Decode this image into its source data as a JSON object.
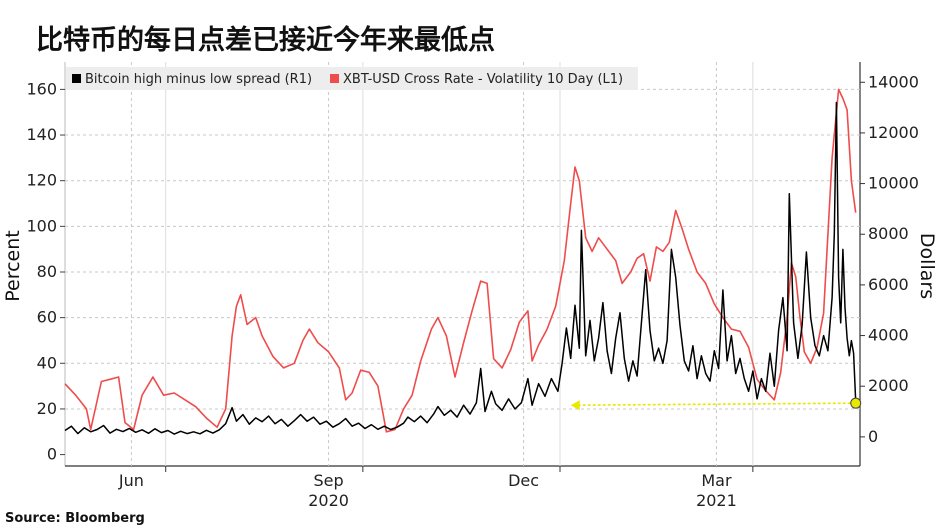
{
  "title": "比特币的每日点差已接近今年来最低点",
  "source": "Source: Bloomberg",
  "chart_data": {
    "type": "line",
    "left_axis_label": "Percent",
    "right_axis_label": "Dollars",
    "left_ticks": [
      "0",
      "20",
      "40",
      "60",
      "80",
      "100",
      "120",
      "140",
      "160"
    ],
    "right_ticks": [
      "0",
      "2000",
      "4000",
      "6000",
      "8000",
      "10000",
      "12000",
      "14000"
    ],
    "left_ylim": [
      -5,
      172
    ],
    "right_ylim": [
      -1150,
      14800
    ],
    "x_ticks": [
      {
        "date": "2020-06-15",
        "label": "Jun",
        "year": ""
      },
      {
        "date": "2020-09-15",
        "label": "Sep",
        "year": "2020"
      },
      {
        "date": "2020-12-15",
        "label": "Dec",
        "year": ""
      },
      {
        "date": "2021-03-15",
        "label": "Mar",
        "year": "2021"
      }
    ],
    "x_separators": [
      "2020-07-01",
      "2020-10-01",
      "2021-01-01",
      "2021-04-01"
    ],
    "xlim": [
      "2020-05-15",
      "2021-05-21"
    ],
    "legend": [
      {
        "label": "Bitcoin high minus low spread (R1)",
        "color": "#000000"
      },
      {
        "label": "XBT-USD Cross Rate - Volatility 10 Day (L1)",
        "color": "#ef4c4c"
      }
    ],
    "annotation": {
      "type": "arrow",
      "color": "#e8e800",
      "from": [
        "2021-05-19",
        1330
      ],
      "to": [
        "2021-01-06",
        1250
      ]
    },
    "series": [
      {
        "name": "XBT-USD Cross Rate - Volatility 10 Day (L1)",
        "axis": "left",
        "color": "#ef4c4c",
        "points": [
          [
            "2020-05-15",
            31
          ],
          [
            "2020-05-20",
            26
          ],
          [
            "2020-05-25",
            20
          ],
          [
            "2020-05-27",
            11
          ],
          [
            "2020-06-01",
            32
          ],
          [
            "2020-06-05",
            33
          ],
          [
            "2020-06-09",
            34
          ],
          [
            "2020-06-12",
            14
          ],
          [
            "2020-06-16",
            11
          ],
          [
            "2020-06-20",
            26
          ],
          [
            "2020-06-25",
            34
          ],
          [
            "2020-06-30",
            26
          ],
          [
            "2020-07-05",
            27
          ],
          [
            "2020-07-10",
            24
          ],
          [
            "2020-07-15",
            21
          ],
          [
            "2020-07-20",
            16
          ],
          [
            "2020-07-25",
            12
          ],
          [
            "2020-07-29",
            20
          ],
          [
            "2020-08-01",
            52
          ],
          [
            "2020-08-03",
            65
          ],
          [
            "2020-08-05",
            70
          ],
          [
            "2020-08-08",
            57
          ],
          [
            "2020-08-12",
            60
          ],
          [
            "2020-08-15",
            52
          ],
          [
            "2020-08-20",
            43
          ],
          [
            "2020-08-25",
            38
          ],
          [
            "2020-08-30",
            40
          ],
          [
            "2020-09-03",
            50
          ],
          [
            "2020-09-06",
            55
          ],
          [
            "2020-09-10",
            49
          ],
          [
            "2020-09-15",
            45
          ],
          [
            "2020-09-20",
            38
          ],
          [
            "2020-09-23",
            24
          ],
          [
            "2020-09-26",
            27
          ],
          [
            "2020-09-30",
            37
          ],
          [
            "2020-10-04",
            36
          ],
          [
            "2020-10-08",
            30
          ],
          [
            "2020-10-12",
            10
          ],
          [
            "2020-10-16",
            11
          ],
          [
            "2020-10-20",
            20
          ],
          [
            "2020-10-24",
            26
          ],
          [
            "2020-10-28",
            41
          ],
          [
            "2020-11-02",
            55
          ],
          [
            "2020-11-05",
            60
          ],
          [
            "2020-11-09",
            52
          ],
          [
            "2020-11-13",
            34
          ],
          [
            "2020-11-17",
            49
          ],
          [
            "2020-11-21",
            63
          ],
          [
            "2020-11-25",
            76
          ],
          [
            "2020-11-28",
            75
          ],
          [
            "2020-12-01",
            42
          ],
          [
            "2020-12-05",
            38
          ],
          [
            "2020-12-09",
            46
          ],
          [
            "2020-12-13",
            58
          ],
          [
            "2020-12-17",
            63
          ],
          [
            "2020-12-19",
            41
          ],
          [
            "2020-12-22",
            48
          ],
          [
            "2020-12-26",
            55
          ],
          [
            "2020-12-30",
            65
          ],
          [
            "2021-01-03",
            85
          ],
          [
            "2021-01-06",
            110
          ],
          [
            "2021-01-08",
            126
          ],
          [
            "2021-01-10",
            120
          ],
          [
            "2021-01-13",
            95
          ],
          [
            "2021-01-16",
            89
          ],
          [
            "2021-01-19",
            95
          ],
          [
            "2021-01-23",
            90
          ],
          [
            "2021-01-27",
            85
          ],
          [
            "2021-01-30",
            75
          ],
          [
            "2021-02-03",
            80
          ],
          [
            "2021-02-06",
            86
          ],
          [
            "2021-02-09",
            88
          ],
          [
            "2021-02-12",
            76
          ],
          [
            "2021-02-15",
            91
          ],
          [
            "2021-02-18",
            89
          ],
          [
            "2021-02-21",
            93
          ],
          [
            "2021-02-24",
            107
          ],
          [
            "2021-02-27",
            99
          ],
          [
            "2021-03-02",
            90
          ],
          [
            "2021-03-06",
            80
          ],
          [
            "2021-03-10",
            75
          ],
          [
            "2021-03-14",
            66
          ],
          [
            "2021-03-18",
            60
          ],
          [
            "2021-03-22",
            55
          ],
          [
            "2021-03-26",
            54
          ],
          [
            "2021-03-30",
            47
          ],
          [
            "2021-04-03",
            33
          ],
          [
            "2021-04-07",
            28
          ],
          [
            "2021-04-11",
            24
          ],
          [
            "2021-04-14",
            36
          ],
          [
            "2021-04-17",
            60
          ],
          [
            "2021-04-19",
            84
          ],
          [
            "2021-04-21",
            78
          ],
          [
            "2021-04-23",
            60
          ],
          [
            "2021-04-25",
            45
          ],
          [
            "2021-04-28",
            40
          ],
          [
            "2021-05-01",
            47
          ],
          [
            "2021-05-04",
            62
          ],
          [
            "2021-05-08",
            130
          ],
          [
            "2021-05-11",
            160
          ],
          [
            "2021-05-13",
            156
          ],
          [
            "2021-05-15",
            151
          ],
          [
            "2021-05-17",
            120
          ],
          [
            "2021-05-19",
            106
          ]
        ]
      },
      {
        "name": "Bitcoin high minus low spread (R1)",
        "axis": "right",
        "color": "#000000",
        "points": [
          [
            "2020-05-15",
            250
          ],
          [
            "2020-05-18",
            420
          ],
          [
            "2020-05-21",
            130
          ],
          [
            "2020-05-24",
            360
          ],
          [
            "2020-05-27",
            200
          ],
          [
            "2020-05-30",
            290
          ],
          [
            "2020-06-02",
            450
          ],
          [
            "2020-06-05",
            150
          ],
          [
            "2020-06-08",
            300
          ],
          [
            "2020-06-11",
            210
          ],
          [
            "2020-06-14",
            330
          ],
          [
            "2020-06-17",
            180
          ],
          [
            "2020-06-20",
            280
          ],
          [
            "2020-06-23",
            140
          ],
          [
            "2020-06-26",
            320
          ],
          [
            "2020-06-29",
            170
          ],
          [
            "2020-07-02",
            250
          ],
          [
            "2020-07-05",
            110
          ],
          [
            "2020-07-08",
            220
          ],
          [
            "2020-07-11",
            130
          ],
          [
            "2020-07-14",
            200
          ],
          [
            "2020-07-17",
            120
          ],
          [
            "2020-07-20",
            260
          ],
          [
            "2020-07-23",
            150
          ],
          [
            "2020-07-26",
            280
          ],
          [
            "2020-07-29",
            520
          ],
          [
            "2020-08-01",
            1150
          ],
          [
            "2020-08-03",
            620
          ],
          [
            "2020-08-06",
            880
          ],
          [
            "2020-08-09",
            500
          ],
          [
            "2020-08-12",
            750
          ],
          [
            "2020-08-15",
            600
          ],
          [
            "2020-08-18",
            820
          ],
          [
            "2020-08-21",
            520
          ],
          [
            "2020-08-24",
            690
          ],
          [
            "2020-08-27",
            420
          ],
          [
            "2020-08-30",
            640
          ],
          [
            "2020-09-02",
            880
          ],
          [
            "2020-09-05",
            620
          ],
          [
            "2020-09-08",
            780
          ],
          [
            "2020-09-11",
            500
          ],
          [
            "2020-09-14",
            620
          ],
          [
            "2020-09-17",
            380
          ],
          [
            "2020-09-20",
            520
          ],
          [
            "2020-09-23",
            720
          ],
          [
            "2020-09-26",
            420
          ],
          [
            "2020-09-29",
            540
          ],
          [
            "2020-10-02",
            330
          ],
          [
            "2020-10-05",
            480
          ],
          [
            "2020-10-08",
            300
          ],
          [
            "2020-10-11",
            420
          ],
          [
            "2020-10-14",
            290
          ],
          [
            "2020-10-17",
            380
          ],
          [
            "2020-10-20",
            540
          ],
          [
            "2020-10-22",
            780
          ],
          [
            "2020-10-25",
            600
          ],
          [
            "2020-10-28",
            820
          ],
          [
            "2020-10-31",
            560
          ],
          [
            "2020-11-03",
            900
          ],
          [
            "2020-11-05",
            1200
          ],
          [
            "2020-11-08",
            850
          ],
          [
            "2020-11-11",
            1050
          ],
          [
            "2020-11-14",
            780
          ],
          [
            "2020-11-17",
            1250
          ],
          [
            "2020-11-20",
            900
          ],
          [
            "2020-11-23",
            1350
          ],
          [
            "2020-11-25",
            2700
          ],
          [
            "2020-11-27",
            1000
          ],
          [
            "2020-11-30",
            1800
          ],
          [
            "2020-12-02",
            1300
          ],
          [
            "2020-12-05",
            1050
          ],
          [
            "2020-12-08",
            1500
          ],
          [
            "2020-12-11",
            1100
          ],
          [
            "2020-12-14",
            1350
          ],
          [
            "2020-12-17",
            2300
          ],
          [
            "2020-12-19",
            1250
          ],
          [
            "2020-12-22",
            2100
          ],
          [
            "2020-12-25",
            1600
          ],
          [
            "2020-12-28",
            2300
          ],
          [
            "2020-12-31",
            1800
          ],
          [
            "2021-01-02",
            2900
          ],
          [
            "2021-01-04",
            4300
          ],
          [
            "2021-01-06",
            3100
          ],
          [
            "2021-01-08",
            5200
          ],
          [
            "2021-01-10",
            3500
          ],
          [
            "2021-01-11",
            8150
          ],
          [
            "2021-01-13",
            3200
          ],
          [
            "2021-01-15",
            4600
          ],
          [
            "2021-01-17",
            3000
          ],
          [
            "2021-01-19",
            3900
          ],
          [
            "2021-01-21",
            5300
          ],
          [
            "2021-01-23",
            3400
          ],
          [
            "2021-01-25",
            2500
          ],
          [
            "2021-01-27",
            3900
          ],
          [
            "2021-01-29",
            4900
          ],
          [
            "2021-01-31",
            3100
          ],
          [
            "2021-02-02",
            2200
          ],
          [
            "2021-02-04",
            3000
          ],
          [
            "2021-02-06",
            2400
          ],
          [
            "2021-02-08",
            4500
          ],
          [
            "2021-02-10",
            6600
          ],
          [
            "2021-02-12",
            4200
          ],
          [
            "2021-02-14",
            3000
          ],
          [
            "2021-02-16",
            3500
          ],
          [
            "2021-02-18",
            2900
          ],
          [
            "2021-02-20",
            3800
          ],
          [
            "2021-02-22",
            7400
          ],
          [
            "2021-02-24",
            6300
          ],
          [
            "2021-02-26",
            4400
          ],
          [
            "2021-02-28",
            3000
          ],
          [
            "2021-03-02",
            2600
          ],
          [
            "2021-03-04",
            3600
          ],
          [
            "2021-03-06",
            2300
          ],
          [
            "2021-03-08",
            3200
          ],
          [
            "2021-03-10",
            2500
          ],
          [
            "2021-03-12",
            2200
          ],
          [
            "2021-03-14",
            3400
          ],
          [
            "2021-03-16",
            2700
          ],
          [
            "2021-03-18",
            5800
          ],
          [
            "2021-03-20",
            3000
          ],
          [
            "2021-03-22",
            4000
          ],
          [
            "2021-03-24",
            2500
          ],
          [
            "2021-03-26",
            3100
          ],
          [
            "2021-03-28",
            2300
          ],
          [
            "2021-03-30",
            1800
          ],
          [
            "2021-04-01",
            2600
          ],
          [
            "2021-04-03",
            1500
          ],
          [
            "2021-04-05",
            2300
          ],
          [
            "2021-04-07",
            1800
          ],
          [
            "2021-04-09",
            3300
          ],
          [
            "2021-04-11",
            2000
          ],
          [
            "2021-04-13",
            4200
          ],
          [
            "2021-04-15",
            5500
          ],
          [
            "2021-04-17",
            3400
          ],
          [
            "2021-04-18",
            9600
          ],
          [
            "2021-04-20",
            4500
          ],
          [
            "2021-04-22",
            3100
          ],
          [
            "2021-04-24",
            4400
          ],
          [
            "2021-04-26",
            7300
          ],
          [
            "2021-04-28",
            4700
          ],
          [
            "2021-04-30",
            3600
          ],
          [
            "2021-05-02",
            3200
          ],
          [
            "2021-05-04",
            4000
          ],
          [
            "2021-05-06",
            3400
          ],
          [
            "2021-05-08",
            5500
          ],
          [
            "2021-05-09",
            8000
          ],
          [
            "2021-05-10",
            13200
          ],
          [
            "2021-05-11",
            6300
          ],
          [
            "2021-05-12",
            4500
          ],
          [
            "2021-05-13",
            7400
          ],
          [
            "2021-05-14",
            5100
          ],
          [
            "2021-05-15",
            3900
          ],
          [
            "2021-05-16",
            3200
          ],
          [
            "2021-05-17",
            3800
          ],
          [
            "2021-05-18",
            3300
          ],
          [
            "2021-05-19",
            1400
          ]
        ]
      }
    ]
  }
}
